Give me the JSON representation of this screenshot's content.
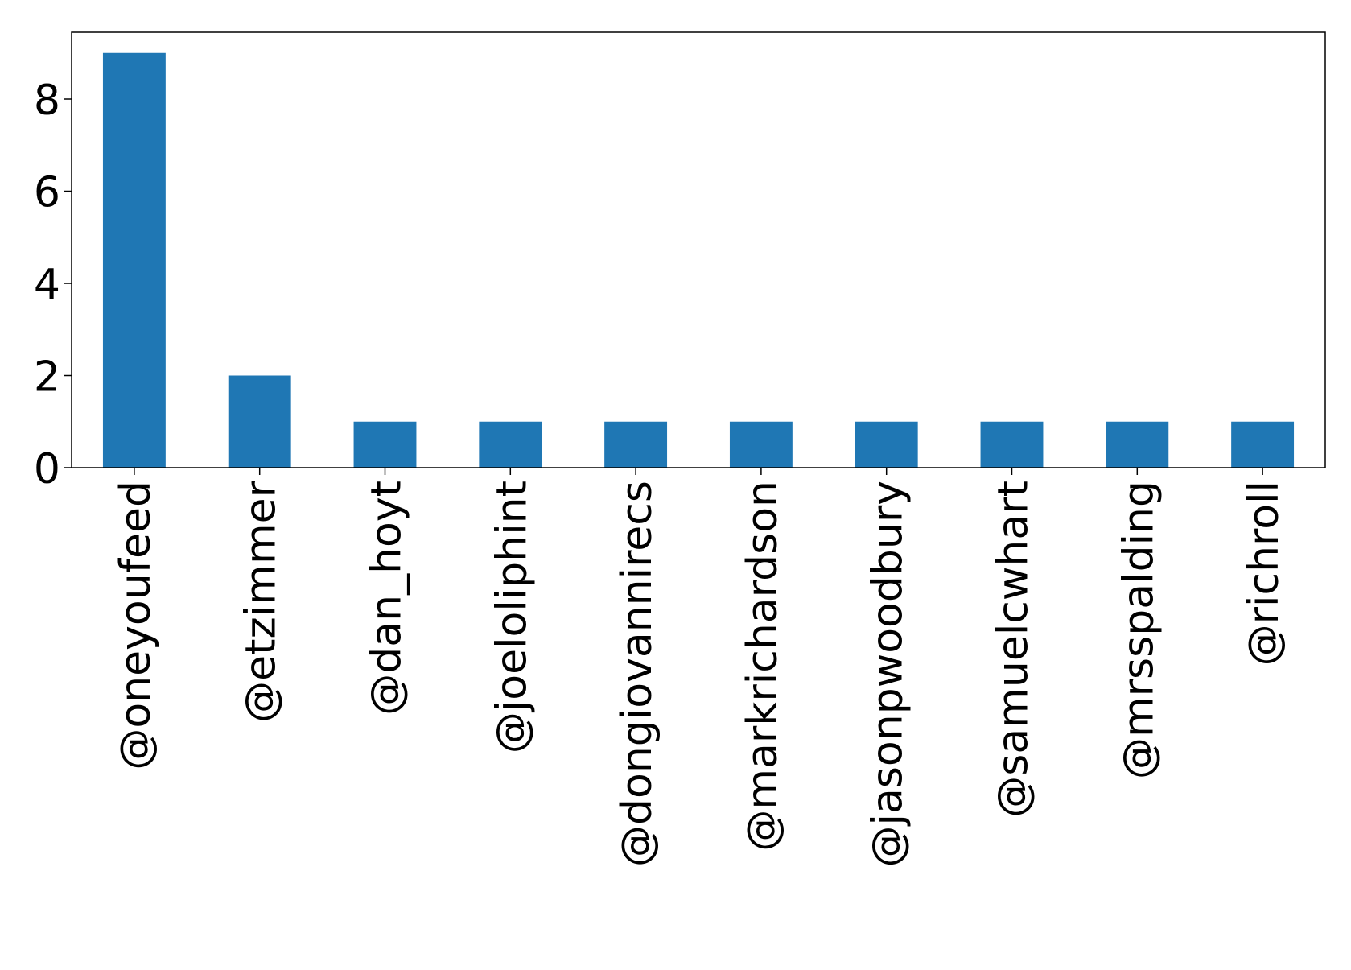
{
  "chart_data": {
    "type": "bar",
    "categories": [
      "@oneyoufeed",
      "@etzimmer",
      "@dan_hoyt",
      "@joeloliphint",
      "@dongiovannirecs",
      "@markrichardson",
      "@jasonpwoodbury",
      "@samuelcwhart",
      "@mrsspalding",
      "@richroll"
    ],
    "values": [
      9,
      2,
      1,
      1,
      1,
      1,
      1,
      1,
      1,
      1
    ],
    "color": "#1f77b4",
    "ylim": [
      0,
      9.45
    ],
    "yticks": [
      0,
      2,
      4,
      6,
      8
    ],
    "grid": false
  }
}
